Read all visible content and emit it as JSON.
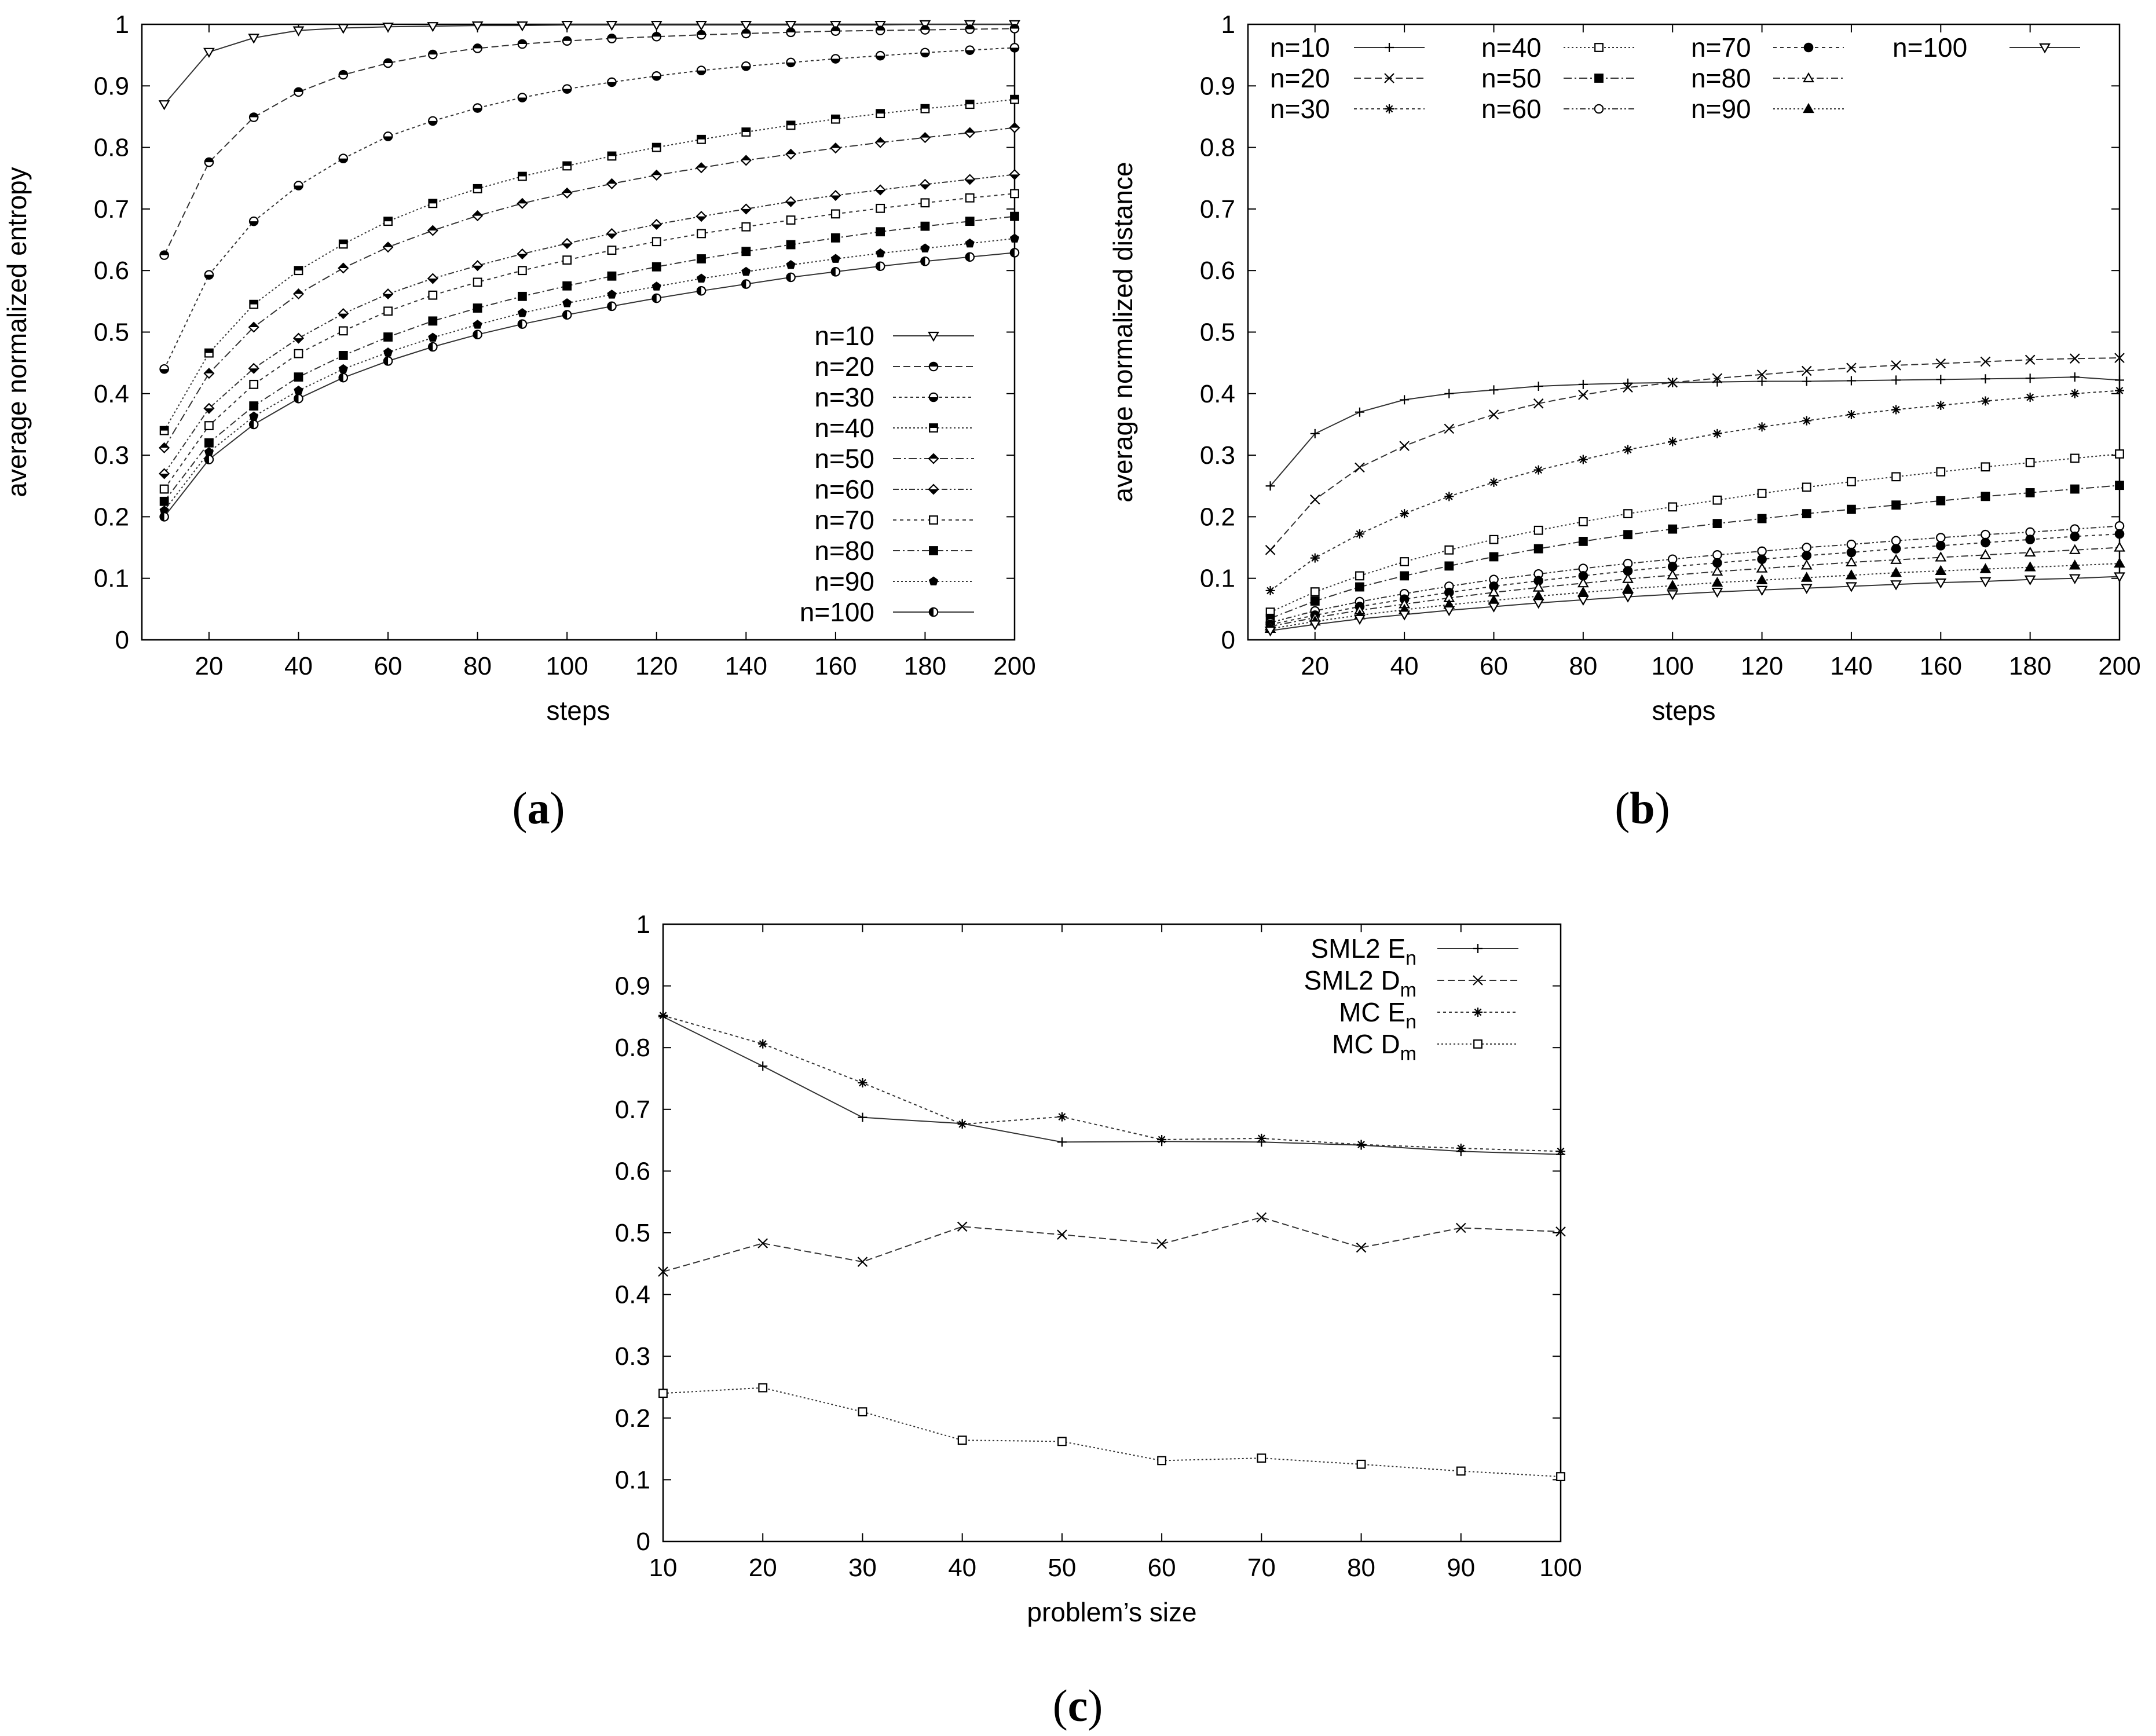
{
  "chart_data": [
    {
      "id": "a",
      "panel_label": "a",
      "type": "line",
      "xlabel": "steps",
      "ylabel": "average normalized entropy",
      "xlim": [
        5,
        200
      ],
      "ylim": [
        0,
        1
      ],
      "xticks": [
        "20",
        "40",
        "60",
        "80",
        "100",
        "120",
        "140",
        "160",
        "180",
        "200"
      ],
      "yticks": [
        "0",
        "0.1",
        "0.2",
        "0.3",
        "0.4",
        "0.5",
        "0.6",
        "0.7",
        "0.8",
        "0.9",
        "1"
      ],
      "legend_position": "bottom-right",
      "x": [
        10,
        20,
        30,
        40,
        50,
        60,
        70,
        80,
        90,
        100,
        110,
        120,
        130,
        140,
        150,
        160,
        170,
        180,
        190,
        200
      ],
      "series": [
        {
          "name": "n=10",
          "marker": "tri-down-open",
          "dash": "",
          "values": [
            0.87,
            0.955,
            0.978,
            0.99,
            0.994,
            0.996,
            0.997,
            0.998,
            0.998,
            0.999,
            0.999,
            0.999,
            0.999,
            0.999,
            0.999,
            0.999,
            0.999,
            1.0,
            1.0,
            1.0
          ]
        },
        {
          "name": "n=20",
          "marker": "circle-top",
          "dash": "12,6",
          "values": [
            0.625,
            0.776,
            0.849,
            0.89,
            0.918,
            0.937,
            0.951,
            0.961,
            0.968,
            0.973,
            0.977,
            0.98,
            0.983,
            0.985,
            0.987,
            0.989,
            0.99,
            0.991,
            0.992,
            0.993
          ]
        },
        {
          "name": "n=30",
          "marker": "circle-bottom",
          "dash": "5,5",
          "values": [
            0.44,
            0.593,
            0.68,
            0.738,
            0.782,
            0.818,
            0.843,
            0.864,
            0.881,
            0.895,
            0.906,
            0.916,
            0.925,
            0.932,
            0.938,
            0.944,
            0.949,
            0.954,
            0.958,
            0.962
          ]
        },
        {
          "name": "n=40",
          "marker": "square-top",
          "dash": "3,4",
          "values": [
            0.34,
            0.466,
            0.545,
            0.6,
            0.643,
            0.68,
            0.709,
            0.733,
            0.753,
            0.77,
            0.786,
            0.8,
            0.813,
            0.825,
            0.836,
            0.846,
            0.855,
            0.863,
            0.87,
            0.878
          ]
        },
        {
          "name": "n=50",
          "marker": "diamond-top",
          "dash": "14,5,3,5",
          "values": [
            0.312,
            0.433,
            0.508,
            0.562,
            0.604,
            0.638,
            0.665,
            0.689,
            0.709,
            0.726,
            0.741,
            0.755,
            0.767,
            0.779,
            0.789,
            0.799,
            0.808,
            0.816,
            0.824,
            0.832
          ]
        },
        {
          "name": "n=60",
          "marker": "diamond-bottom",
          "dash": "10,4,3,4,3,4",
          "values": [
            0.27,
            0.376,
            0.441,
            0.49,
            0.53,
            0.562,
            0.587,
            0.608,
            0.627,
            0.644,
            0.66,
            0.675,
            0.688,
            0.7,
            0.712,
            0.722,
            0.731,
            0.74,
            0.748,
            0.756
          ]
        },
        {
          "name": "n=70",
          "marker": "square-open",
          "dash": "6,6",
          "values": [
            0.245,
            0.348,
            0.415,
            0.465,
            0.502,
            0.534,
            0.56,
            0.581,
            0.6,
            0.617,
            0.633,
            0.647,
            0.66,
            0.671,
            0.682,
            0.692,
            0.701,
            0.71,
            0.718,
            0.725
          ]
        },
        {
          "name": "n=80",
          "marker": "square-filled",
          "dash": "12,5,3,5",
          "values": [
            0.225,
            0.32,
            0.38,
            0.427,
            0.462,
            0.492,
            0.518,
            0.539,
            0.558,
            0.575,
            0.591,
            0.606,
            0.619,
            0.631,
            0.642,
            0.653,
            0.663,
            0.672,
            0.68,
            0.688
          ]
        },
        {
          "name": "n=90",
          "marker": "pentagon-filled",
          "dash": "3,4",
          "values": [
            0.21,
            0.305,
            0.363,
            0.405,
            0.44,
            0.467,
            0.491,
            0.512,
            0.531,
            0.547,
            0.561,
            0.574,
            0.587,
            0.598,
            0.609,
            0.619,
            0.628,
            0.636,
            0.644,
            0.652
          ]
        },
        {
          "name": "n=100",
          "marker": "circle-left",
          "dash": "",
          "values": [
            0.2,
            0.293,
            0.35,
            0.392,
            0.426,
            0.453,
            0.476,
            0.496,
            0.513,
            0.528,
            0.542,
            0.555,
            0.567,
            0.578,
            0.589,
            0.598,
            0.607,
            0.615,
            0.622,
            0.629
          ]
        }
      ]
    },
    {
      "id": "b",
      "panel_label": "b",
      "type": "line",
      "xlabel": "steps",
      "ylabel": "average normalized distance",
      "xlim": [
        5,
        200
      ],
      "ylim": [
        0,
        1
      ],
      "xticks": [
        "20",
        "40",
        "60",
        "80",
        "100",
        "120",
        "140",
        "160",
        "180",
        "200"
      ],
      "yticks": [
        "0",
        "0.1",
        "0.2",
        "0.3",
        "0.4",
        "0.5",
        "0.6",
        "0.7",
        "0.8",
        "0.9",
        "1"
      ],
      "legend_position": "top",
      "x": [
        10,
        20,
        30,
        40,
        50,
        60,
        70,
        80,
        90,
        100,
        110,
        120,
        130,
        140,
        150,
        160,
        170,
        180,
        190,
        200
      ],
      "series": [
        {
          "name": "n=10",
          "marker": "plus",
          "dash": "",
          "values": [
            0.25,
            0.335,
            0.37,
            0.39,
            0.4,
            0.406,
            0.412,
            0.415,
            0.417,
            0.418,
            0.419,
            0.42,
            0.42,
            0.421,
            0.422,
            0.423,
            0.424,
            0.425,
            0.427,
            0.422
          ]
        },
        {
          "name": "n=20",
          "marker": "x",
          "dash": "12,6",
          "values": [
            0.146,
            0.228,
            0.28,
            0.315,
            0.343,
            0.366,
            0.384,
            0.398,
            0.41,
            0.418,
            0.425,
            0.431,
            0.437,
            0.442,
            0.446,
            0.449,
            0.452,
            0.455,
            0.457,
            0.458
          ]
        },
        {
          "name": "n=30",
          "marker": "star",
          "dash": "5,5",
          "values": [
            0.08,
            0.133,
            0.172,
            0.205,
            0.233,
            0.256,
            0.276,
            0.293,
            0.309,
            0.322,
            0.335,
            0.346,
            0.356,
            0.366,
            0.374,
            0.381,
            0.388,
            0.394,
            0.4,
            0.405
          ]
        },
        {
          "name": "n=40",
          "marker": "square-open",
          "dash": "3,4",
          "values": [
            0.045,
            0.078,
            0.104,
            0.127,
            0.146,
            0.163,
            0.178,
            0.192,
            0.205,
            0.216,
            0.227,
            0.238,
            0.248,
            0.257,
            0.265,
            0.273,
            0.281,
            0.288,
            0.295,
            0.302
          ]
        },
        {
          "name": "n=50",
          "marker": "square-filled",
          "dash": "14,5,3,5",
          "values": [
            0.035,
            0.063,
            0.086,
            0.104,
            0.12,
            0.135,
            0.148,
            0.16,
            0.171,
            0.18,
            0.189,
            0.197,
            0.205,
            0.212,
            0.219,
            0.226,
            0.233,
            0.239,
            0.245,
            0.251
          ]
        },
        {
          "name": "n=60",
          "marker": "circle-open",
          "dash": "10,4,3,4,3,4",
          "values": [
            0.028,
            0.047,
            0.062,
            0.075,
            0.087,
            0.098,
            0.107,
            0.116,
            0.124,
            0.131,
            0.138,
            0.144,
            0.15,
            0.155,
            0.161,
            0.166,
            0.171,
            0.175,
            0.18,
            0.185
          ]
        },
        {
          "name": "n=70",
          "marker": "circle-filled",
          "dash": "6,6",
          "values": [
            0.025,
            0.04,
            0.054,
            0.066,
            0.077,
            0.087,
            0.096,
            0.104,
            0.112,
            0.119,
            0.125,
            0.131,
            0.137,
            0.142,
            0.148,
            0.153,
            0.158,
            0.163,
            0.168,
            0.172
          ]
        },
        {
          "name": "n=80",
          "marker": "tri-up-open",
          "dash": "12,5,3,5",
          "values": [
            0.022,
            0.036,
            0.048,
            0.058,
            0.068,
            0.077,
            0.085,
            0.092,
            0.099,
            0.105,
            0.111,
            0.116,
            0.121,
            0.126,
            0.13,
            0.134,
            0.138,
            0.142,
            0.146,
            0.15
          ]
        },
        {
          "name": "n=90",
          "marker": "tri-up-filled",
          "dash": "3,4",
          "values": [
            0.018,
            0.03,
            0.04,
            0.049,
            0.057,
            0.064,
            0.071,
            0.077,
            0.083,
            0.088,
            0.093,
            0.097,
            0.101,
            0.105,
            0.109,
            0.112,
            0.115,
            0.118,
            0.121,
            0.124
          ]
        },
        {
          "name": "n=100",
          "marker": "tri-down-open",
          "dash": "",
          "values": [
            0.015,
            0.025,
            0.034,
            0.041,
            0.048,
            0.054,
            0.06,
            0.065,
            0.07,
            0.074,
            0.078,
            0.081,
            0.084,
            0.087,
            0.09,
            0.093,
            0.095,
            0.098,
            0.1,
            0.103
          ]
        }
      ]
    },
    {
      "id": "c",
      "panel_label": "c",
      "type": "line",
      "xlabel": "problem’s size",
      "ylabel": "",
      "xlim": [
        10,
        100
      ],
      "ylim": [
        0,
        1
      ],
      "xticks": [
        "10",
        "20",
        "30",
        "40",
        "50",
        "60",
        "70",
        "80",
        "90",
        "100"
      ],
      "yticks": [
        "0",
        "0.1",
        "0.2",
        "0.3",
        "0.4",
        "0.5",
        "0.6",
        "0.7",
        "0.8",
        "0.9",
        "1"
      ],
      "legend_position": "top-right",
      "x": [
        10,
        20,
        30,
        40,
        50,
        60,
        70,
        80,
        90,
        100
      ],
      "series": [
        {
          "name": "SML2 E",
          "sub": "n",
          "marker": "plus",
          "dash": "",
          "values": [
            0.85,
            0.77,
            0.687,
            0.677,
            0.647,
            0.648,
            0.647,
            0.642,
            0.632,
            0.627
          ]
        },
        {
          "name": "SML2 D",
          "sub": "m",
          "marker": "x",
          "dash": "12,6",
          "values": [
            0.437,
            0.483,
            0.453,
            0.51,
            0.497,
            0.482,
            0.525,
            0.476,
            0.508,
            0.502
          ]
        },
        {
          "name": "MC E",
          "sub": "n",
          "marker": "star",
          "dash": "5,5",
          "values": [
            0.852,
            0.806,
            0.743,
            0.676,
            0.688,
            0.651,
            0.653,
            0.643,
            0.637,
            0.632
          ]
        },
        {
          "name": "MC D",
          "sub": "m",
          "marker": "square-open",
          "dash": "3,4",
          "values": [
            0.24,
            0.249,
            0.21,
            0.164,
            0.162,
            0.131,
            0.135,
            0.125,
            0.114,
            0.105
          ]
        }
      ]
    }
  ]
}
